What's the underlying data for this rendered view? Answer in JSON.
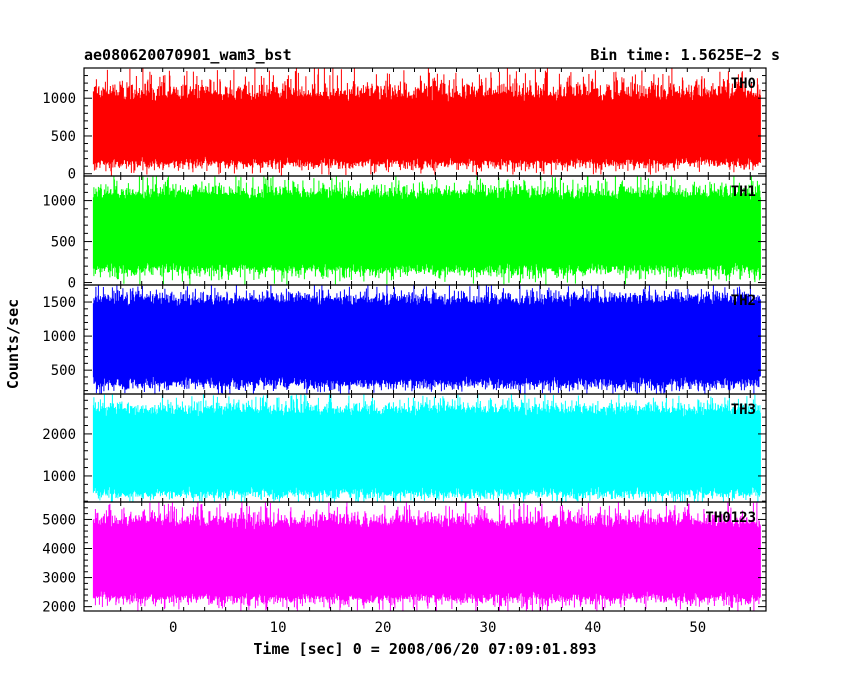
{
  "header": {
    "title_left": "ae080620070901_wam3_bst",
    "title_right": "Bin time: 1.5625E−2 s"
  },
  "axes": {
    "xlabel": "Time [sec] 0 = 2008/06/20 07:09:01.893",
    "ylabel": "Counts/sec"
  },
  "chart_data": {
    "type": "line",
    "title": "ae080620070901_wam3_bst",
    "subtitle": "Bin time: 1.5625E−2 s",
    "xlabel": "Time [sec] 0 = 2008/06/20 07:09:01.893",
    "ylabel": "Counts/sec",
    "xlim": [
      -8.5,
      56.5
    ],
    "data_x_range": [
      -7.6,
      56.0
    ],
    "bin_time_s": 0.015625,
    "x_ticks": [
      0,
      10,
      20,
      30,
      40,
      50
    ],
    "grid": false,
    "legend": "none (band names printed at top-right of each panel)",
    "panels": [
      {
        "name": "TH0",
        "color": "#ff0000",
        "ylim": [
          -30,
          1400
        ],
        "y_ticks": [
          0,
          500,
          1000
        ],
        "envelope": {
          "low_min": 0,
          "low_typical": 180,
          "high_typical": 1000,
          "high_max": 1400
        },
        "mean": 600
      },
      {
        "name": "TH1",
        "color": "#00ff00",
        "ylim": [
          -30,
          1300
        ],
        "y_ticks": [
          0,
          500,
          1000
        ],
        "envelope": {
          "low_min": 0,
          "low_typical": 200,
          "high_typical": 1050,
          "high_max": 1300
        },
        "mean": 620
      },
      {
        "name": "TH2",
        "color": "#0000ff",
        "ylim": [
          150,
          1750
        ],
        "y_ticks": [
          500,
          1000,
          1500
        ],
        "envelope": {
          "low_min": 150,
          "low_typical": 350,
          "high_typical": 1500,
          "high_max": 1750
        },
        "mean": 950
      },
      {
        "name": "TH3",
        "color": "#00ffff",
        "ylim": [
          380,
          2950
        ],
        "y_ticks": [
          1000,
          2000
        ],
        "envelope": {
          "low_min": 380,
          "low_typical": 650,
          "high_typical": 2500,
          "high_max": 2950
        },
        "mean": 1600
      },
      {
        "name": "TH0123",
        "color": "#ff00ff",
        "ylim": [
          1850,
          5600
        ],
        "y_ticks": [
          2000,
          3000,
          4000,
          5000
        ],
        "envelope": {
          "low_min": 1850,
          "low_typical": 2400,
          "high_typical": 4800,
          "high_max": 5600
        },
        "mean": 3600
      }
    ]
  }
}
